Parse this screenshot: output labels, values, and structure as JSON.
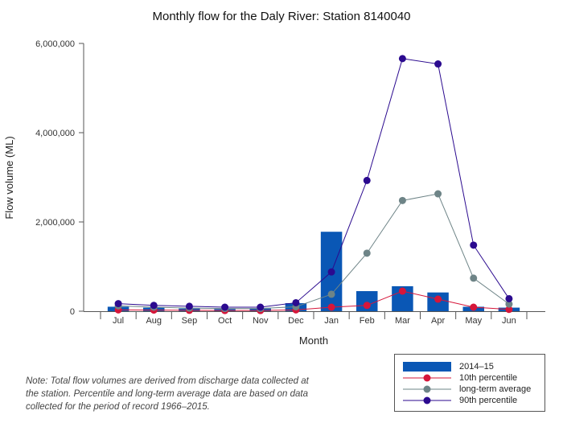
{
  "chart_data": {
    "type": "bar",
    "title": "Monthly flow for the Daly River: Station 8140040",
    "xlabel": "Month",
    "ylabel": "Flow volume (ML)",
    "ylim": [
      0,
      6000000
    ],
    "yticks": [
      "0",
      "2,000,000",
      "4,000,000",
      "6,000,000"
    ],
    "ytick_values": [
      0,
      2000000,
      4000000,
      6000000
    ],
    "categories": [
      "Jul",
      "Aug",
      "Sep",
      "Oct",
      "Nov",
      "Dec",
      "Jan",
      "Feb",
      "Mar",
      "Apr",
      "May",
      "Jun"
    ],
    "series": [
      {
        "name": "2014–15",
        "kind": "bar",
        "color": "#0a57b5",
        "values": [
          100000,
          80000,
          60000,
          50000,
          60000,
          180000,
          1780000,
          450000,
          560000,
          420000,
          100000,
          80000
        ]
      },
      {
        "name": "10th percentile",
        "kind": "line",
        "color": "#d6163a",
        "values": [
          30000,
          25000,
          20000,
          15000,
          15000,
          30000,
          90000,
          130000,
          450000,
          270000,
          90000,
          40000
        ]
      },
      {
        "name": "long-term average",
        "kind": "line",
        "color": "#6e8487",
        "values": [
          120000,
          90000,
          70000,
          60000,
          60000,
          100000,
          380000,
          1300000,
          2480000,
          2630000,
          740000,
          160000
        ]
      },
      {
        "name": "90th percentile",
        "kind": "line",
        "color": "#2b0a8f",
        "values": [
          170000,
          130000,
          110000,
          90000,
          90000,
          190000,
          880000,
          2930000,
          5660000,
          5540000,
          1480000,
          280000
        ]
      }
    ],
    "grid": false,
    "legend_position": "bottom-right"
  },
  "note": "Note: Total flow volumes are derived from discharge data collected at the station. Percentile and long-term average data are based on data collected for the period of record 1966–2015."
}
